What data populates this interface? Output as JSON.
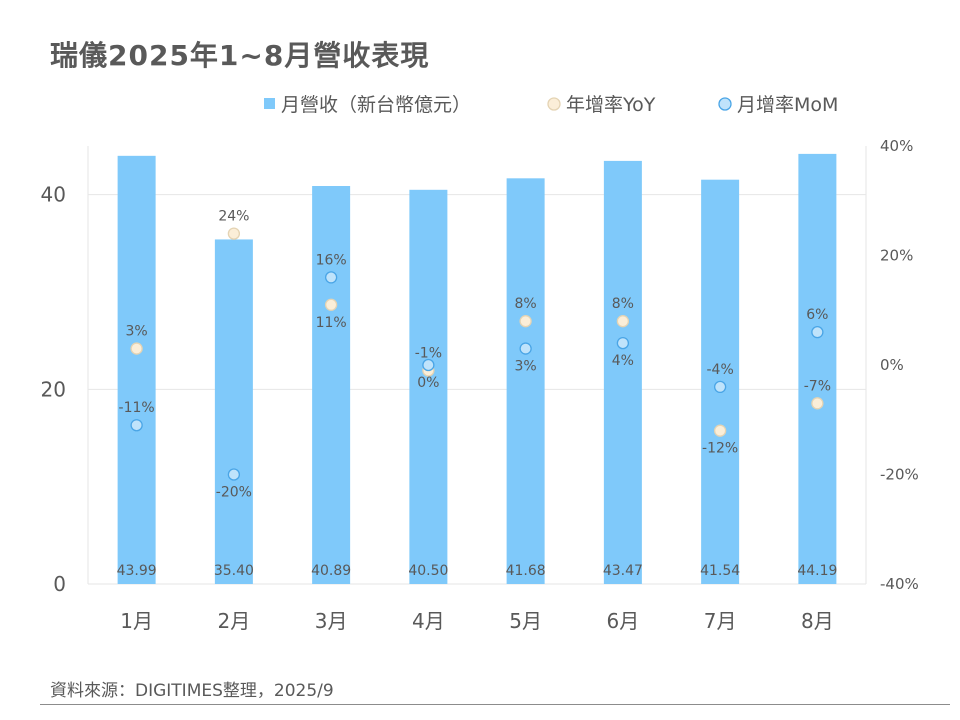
{
  "title": "瑞儀2025年1~8月營收表現",
  "source": "資料來源：DIGITIMES整理，2025/9",
  "colors": {
    "bar": "#7fc9fa",
    "yoy_fill": "#fbeed8",
    "yoy_stroke": "#e4d3b3",
    "mom_fill": "#bfe3fb",
    "mom_stroke": "#4aa5e6",
    "axis_text": "#595959",
    "grid": "#e6e6e6",
    "label": "#595959"
  },
  "chart_data": {
    "type": "bar",
    "categories": [
      "1月",
      "2月",
      "3月",
      "4月",
      "5月",
      "6月",
      "7月",
      "8月"
    ],
    "series": [
      {
        "name": "月營收（新台幣億元）",
        "type": "bar",
        "axis": "left",
        "values": [
          43.99,
          35.4,
          40.89,
          40.5,
          41.68,
          43.47,
          41.54,
          44.19
        ],
        "labels": [
          "43.99",
          "35.40",
          "40.89",
          "40.50",
          "41.68",
          "43.47",
          "41.54",
          "44.19"
        ]
      },
      {
        "name": "年增率YoY",
        "type": "scatter",
        "axis": "right",
        "values": [
          3,
          24,
          11,
          -1,
          8,
          8,
          -12,
          -7
        ],
        "labels": [
          "3%",
          "24%",
          "11%",
          "-1%",
          "8%",
          "8%",
          "-12%",
          "-7%"
        ],
        "label_pos": [
          "above",
          "above",
          "below",
          "above",
          "above",
          "above",
          "below",
          "above"
        ]
      },
      {
        "name": "月增率MoM",
        "type": "scatter",
        "axis": "right",
        "values": [
          -11,
          -20,
          16,
          0,
          3,
          4,
          -4,
          6
        ],
        "labels": [
          "-11%",
          "-20%",
          "16%",
          "0%",
          "3%",
          "4%",
          "-4%",
          "6%"
        ],
        "label_pos": [
          "above",
          "below",
          "above",
          "below",
          "below",
          "below",
          "above",
          "above"
        ]
      }
    ],
    "y_left": {
      "range": [
        0,
        45
      ],
      "ticks": [
        0,
        20,
        40
      ],
      "tick_labels": [
        "0",
        "20",
        "40"
      ]
    },
    "y_right": {
      "range": [
        -40,
        40
      ],
      "ticks": [
        -40,
        -20,
        0,
        20,
        40
      ],
      "tick_labels": [
        "-40%",
        "-20%",
        "0%",
        "20%",
        "40%"
      ]
    },
    "grid": true,
    "legend_position": "top-right"
  }
}
